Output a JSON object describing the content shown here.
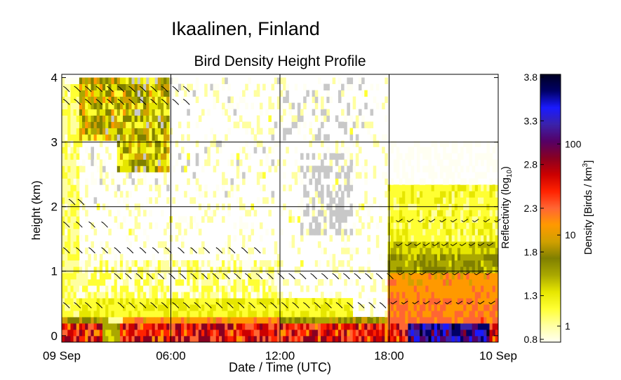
{
  "figure_title": "Ikaalinen, Finland",
  "chart_data": {
    "type": "heatmap",
    "title": "Bird Density Height Profile",
    "xlabel": "Date / Time (UTC)",
    "ylabel": "height (km)",
    "x_tick_labels": [
      "09 Sep",
      "06:00",
      "12:00",
      "18:00",
      "10 Sep"
    ],
    "x_tick_hours": [
      0,
      6,
      12,
      18,
      24
    ],
    "xlim_hours": [
      0,
      24
    ],
    "y_ticks": [
      0,
      1,
      2,
      3,
      4
    ],
    "ylim_km": [
      -0.1,
      4.05
    ],
    "grid": true,
    "colorbar": {
      "left_label_main": "Reflectivity (log",
      "left_label_sub": "10",
      "left_label_end": ")",
      "left_ticks": [
        "0.8",
        "1.3",
        "1.8",
        "2.3",
        "2.8",
        "3.3",
        "3.8"
      ],
      "left_range": [
        0.8,
        3.8
      ],
      "right_label_main": "Density [Birds / km",
      "right_label_sup": "3",
      "right_label_end": "]",
      "right_ticks": [
        "1",
        "10",
        "100"
      ],
      "colors": [
        "#fffff2",
        "#ffffa0",
        "#ffff33",
        "#e6e600",
        "#aaa800",
        "#808000",
        "#d0a000",
        "#ff9900",
        "#ff6633",
        "#ff2200",
        "#cc0000",
        "#880022",
        "#550066",
        "#3a22aa",
        "#1a1aff",
        "#000066",
        "#000022"
      ]
    },
    "no_data_color": "#c8c8c8",
    "wind_barbs": "short dark barbs drawn in layers at heights ~0.4, 0.9, 1.3, 1.7, 2.0, 3.6, 3.8 km"
  }
}
